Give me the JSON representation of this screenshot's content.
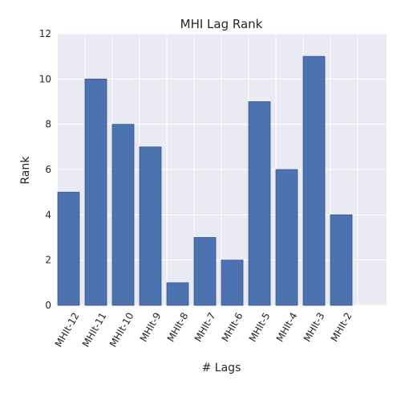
{
  "chart_data": {
    "type": "bar",
    "title": "MHI Lag Rank",
    "xlabel": "# Lags",
    "ylabel": "Rank",
    "categories": [
      "MHIt-12",
      "MHIt-11",
      "MHIt-10",
      "MHIt-9",
      "MHIt-8",
      "MHIt-7",
      "MHIt-6",
      "MHIt-5",
      "MHIt-4",
      "MHIt-3",
      "MHIt-2"
    ],
    "values": [
      5,
      10,
      8,
      7,
      1,
      3,
      2,
      9,
      6,
      11,
      4
    ],
    "ylim": [
      0,
      12
    ],
    "yticks": [
      0,
      2,
      4,
      6,
      8,
      10,
      12
    ],
    "grid": true,
    "colors": {
      "bar": "#4c72b0",
      "bar_edge": "#3a5a8c",
      "plot_background": "#eaeaf2",
      "grid": "#ffffff"
    }
  }
}
